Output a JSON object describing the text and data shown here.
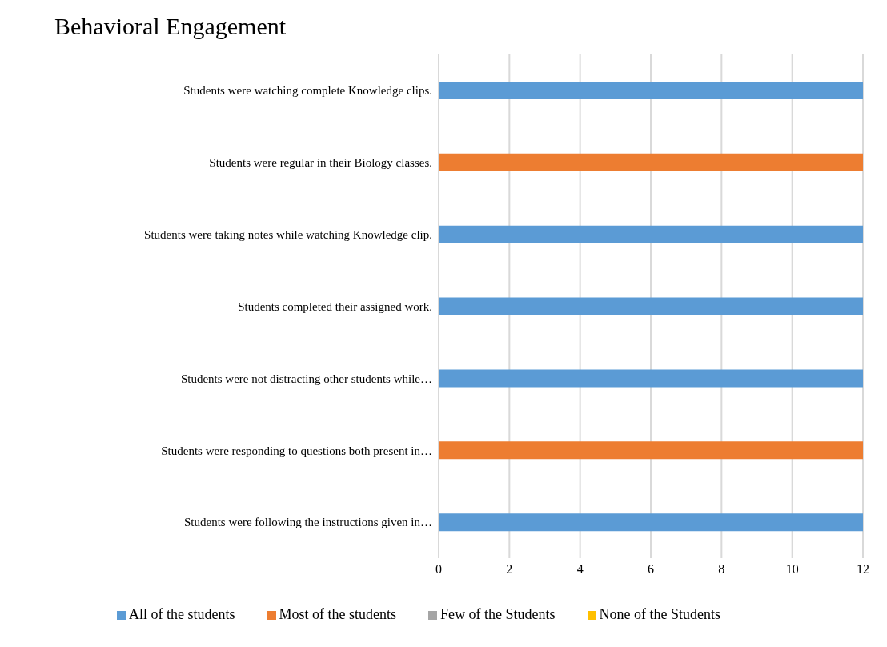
{
  "chart_data": {
    "type": "bar",
    "orientation": "horizontal",
    "stacked": true,
    "title": "Behavioral Engagement",
    "categories": [
      "Students were watching complete Knowledge clips.",
      "Students were regular in their Biology classes.",
      "Students were taking notes while watching Knowledge clip.",
      "Students completed their assigned work.",
      "Students were not distracting other students while…",
      "Students were responding to questions both present in…",
      "Students were following the instructions given in…"
    ],
    "series": [
      {
        "name": "All of the students",
        "color": "#5b9bd5",
        "values": [
          12,
          0,
          12,
          12,
          12,
          0,
          12
        ]
      },
      {
        "name": "Most of the students",
        "color": "#ed7d31",
        "values": [
          0,
          12,
          0,
          0,
          0,
          12,
          0
        ]
      },
      {
        "name": "Few of the Students",
        "color": "#a5a5a5",
        "values": [
          0,
          0,
          0,
          0,
          0,
          0,
          0
        ]
      },
      {
        "name": "None of the Students",
        "color": "#ffc000",
        "values": [
          0,
          0,
          0,
          0,
          0,
          0,
          0
        ]
      }
    ],
    "xlim": [
      0,
      12
    ],
    "xticks": [
      0,
      2,
      4,
      6,
      8,
      10,
      12
    ],
    "grid": "x",
    "legend": "bottom"
  }
}
